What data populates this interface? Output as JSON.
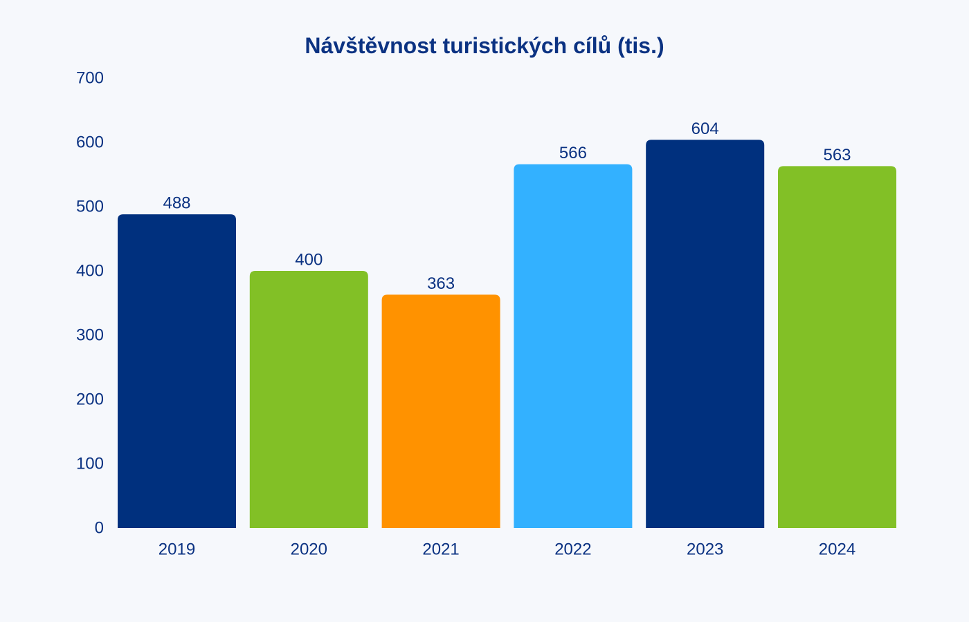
{
  "chart_data": {
    "type": "bar",
    "title": "Návštěvnost turistických cílů (tis.)",
    "xlabel": "",
    "ylabel": "",
    "categories": [
      "2019",
      "2020",
      "2021",
      "2022",
      "2023",
      "2024"
    ],
    "values": [
      488,
      400,
      363,
      566,
      604,
      563
    ],
    "data_labels": [
      "488",
      "400",
      "363",
      "566",
      "604",
      "563"
    ],
    "colors": [
      "#00307e",
      "#82c026",
      "#ff9200",
      "#33b1ff",
      "#00307e",
      "#82c026"
    ],
    "ylim": [
      0,
      700
    ],
    "yticks": [
      0,
      100,
      200,
      300,
      400,
      500,
      600,
      700
    ],
    "ytick_labels": [
      "0",
      "100",
      "200",
      "300",
      "400",
      "500",
      "600",
      "700"
    ],
    "grid": false,
    "legend": "none"
  }
}
